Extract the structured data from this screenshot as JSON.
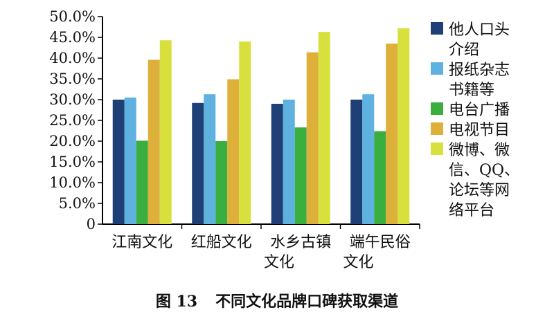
{
  "chart_data": {
    "type": "bar",
    "categories": [
      [
        "江南文化"
      ],
      [
        "红船文化"
      ],
      [
        "水乡古镇",
        "文化"
      ],
      [
        "端午民俗",
        "文化"
      ]
    ],
    "series": [
      {
        "name": [
          "他人口头",
          "介绍"
        ],
        "color": "#1f3f77",
        "values": [
          30.0,
          29.2,
          29.0,
          30.0
        ]
      },
      {
        "name": [
          "报纸杂志",
          "书籍等"
        ],
        "color": "#5fb2e0",
        "values": [
          30.5,
          31.3,
          30.0,
          31.3
        ]
      },
      {
        "name": [
          "电台广播"
        ],
        "color": "#3aae3f",
        "values": [
          20.1,
          20.0,
          23.3,
          22.4
        ]
      },
      {
        "name": [
          "电视节目"
        ],
        "color": "#ddb03a",
        "values": [
          39.6,
          34.9,
          41.4,
          43.5
        ]
      },
      {
        "name": [
          "微博、微",
          "信、QQ、",
          "论坛等网",
          "络平台"
        ],
        "color": "#d7e03d",
        "values": [
          44.3,
          44.0,
          46.3,
          47.2
        ]
      }
    ],
    "y_ticks": [
      "0",
      "5.0%",
      "10.0%",
      "15.0%",
      "20.0%",
      "25.0%",
      "30.0%",
      "35.0%",
      "40.0%",
      "45.0%",
      "50.0%"
    ],
    "ylim": [
      0,
      50
    ],
    "legend_position": "right",
    "grid": false
  },
  "caption": {
    "number": "图 13",
    "text": "不同文化品牌口碑获取渠道"
  }
}
